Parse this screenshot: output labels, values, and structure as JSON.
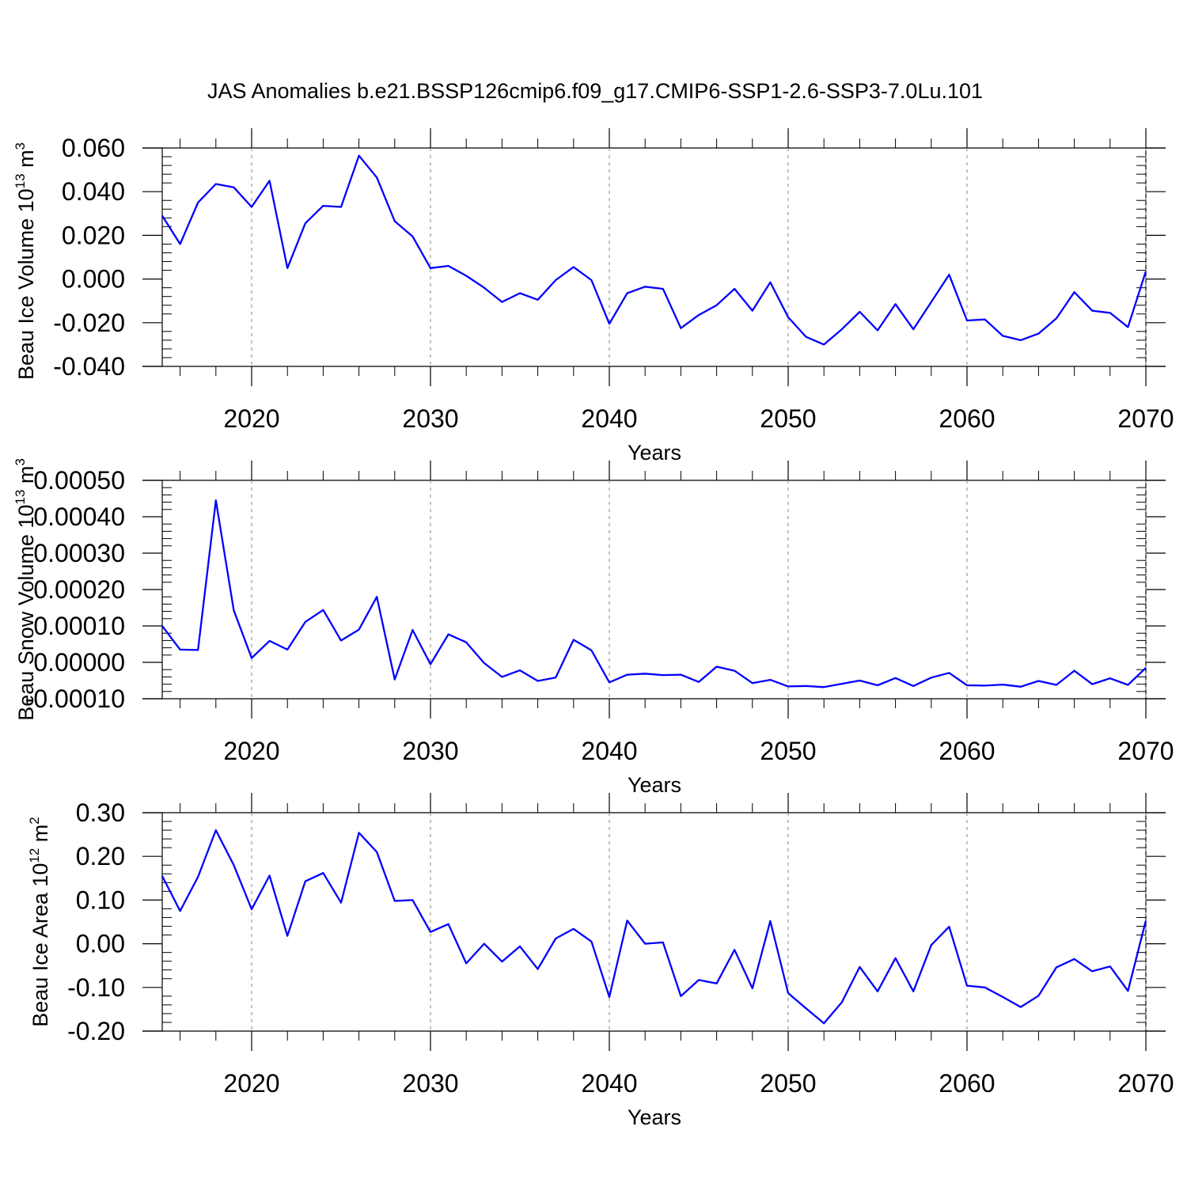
{
  "chart_data": {
    "type": "line",
    "title": "JAS Anomalies b.e21.BSSP126cmip6.f09_g17.CMIP6-SSP1-2.6-SSP3-7.0Lu.101",
    "x_range": [
      2015,
      2070
    ],
    "x_ticks": [
      2020,
      2030,
      2040,
      2050,
      2060,
      2070
    ],
    "xlabel": "Years",
    "grid": "dashed vertical lines at decades",
    "line_color": "#0000ff",
    "panels": [
      {
        "ylabel_main": "Beau Ice Volume 10",
        "ylabel_exp": "13",
        "ylabel_unit": " m",
        "ylabel_unit_exp": "3",
        "ylim": [
          -0.04,
          0.06
        ],
        "y_ticks": [
          0.06,
          0.04,
          0.02,
          0.0,
          -0.02,
          -0.04
        ],
        "y_tick_labels": [
          "0.060",
          "0.040",
          "0.020",
          "0.000",
          "-0.020",
          "-0.040"
        ],
        "x": [
          2015,
          2016,
          2017,
          2018,
          2019,
          2020,
          2021,
          2022,
          2023,
          2024,
          2025,
          2026,
          2027,
          2028,
          2029,
          2030,
          2031,
          2032,
          2033,
          2034,
          2035,
          2036,
          2037,
          2038,
          2039,
          2040,
          2041,
          2042,
          2043,
          2044,
          2045,
          2046,
          2047,
          2048,
          2049,
          2050,
          2051,
          2052,
          2053,
          2054,
          2055,
          2056,
          2057,
          2058,
          2059,
          2060,
          2061,
          2062,
          2063,
          2064,
          2065,
          2066,
          2067,
          2068,
          2069,
          2070
        ],
        "values": [
          0.029,
          0.016,
          0.035,
          0.0435,
          0.042,
          0.033,
          0.045,
          0.005,
          0.0255,
          0.0335,
          0.033,
          0.0565,
          0.0465,
          0.0265,
          0.0195,
          0.005,
          0.006,
          0.0015,
          -0.004,
          -0.0105,
          -0.0065,
          -0.0095,
          -0.0005,
          0.0055,
          -0.0005,
          -0.0205,
          -0.0065,
          -0.0035,
          -0.0045,
          -0.0225,
          -0.0165,
          -0.012,
          -0.0045,
          -0.0145,
          -0.0015,
          -0.0175,
          -0.0265,
          -0.03,
          -0.023,
          -0.015,
          -0.0235,
          -0.0115,
          -0.023,
          -0.0105,
          0.002,
          -0.019,
          -0.0185,
          -0.026,
          -0.028,
          -0.025,
          -0.018,
          -0.006,
          -0.0145,
          -0.0155,
          -0.022,
          0.0035
        ]
      },
      {
        "ylabel_main": "Beau Snow Volume 10",
        "ylabel_exp": "13",
        "ylabel_unit": " m",
        "ylabel_unit_exp": "3",
        "ylim": [
          -0.0001,
          0.0005
        ],
        "y_ticks": [
          0.0005,
          0.0004,
          0.0003,
          0.0002,
          0.0001,
          0.0,
          -0.0001
        ],
        "y_tick_labels": [
          "0.00050",
          "0.00040",
          "0.00030",
          "0.00020",
          "0.00010",
          "0.00000",
          "-0.00010"
        ],
        "x": [
          2015,
          2016,
          2017,
          2018,
          2019,
          2020,
          2021,
          2022,
          2023,
          2024,
          2025,
          2026,
          2027,
          2028,
          2029,
          2030,
          2031,
          2032,
          2033,
          2034,
          2035,
          2036,
          2037,
          2038,
          2039,
          2040,
          2041,
          2042,
          2043,
          2044,
          2045,
          2046,
          2047,
          2048,
          2049,
          2050,
          2051,
          2052,
          2053,
          2054,
          2055,
          2056,
          2057,
          2058,
          2059,
          2060,
          2061,
          2062,
          2063,
          2064,
          2065,
          2066,
          2067,
          2068,
          2069,
          2070
        ],
        "values": [
          0.0001,
          3.5e-05,
          3.4e-05,
          0.000445,
          0.000143,
          1.2e-05,
          5.9e-05,
          3.5e-05,
          0.000111,
          0.000144,
          6e-05,
          9e-05,
          0.00018,
          -4.7e-05,
          8.9e-05,
          -5e-06,
          7.7e-05,
          5.5e-05,
          -2e-06,
          -4e-05,
          -2.2e-05,
          -5.1e-05,
          -4.2e-05,
          6.2e-05,
          3.3e-05,
          -5.5e-05,
          -3.4e-05,
          -3.1e-05,
          -3.5e-05,
          -3.4e-05,
          -5.4e-05,
          -1.2e-05,
          -2.3e-05,
          -5.7e-05,
          -4.8e-05,
          -6.6e-05,
          -6.5e-05,
          -6.8e-05,
          -5.9e-05,
          -5e-05,
          -6.3e-05,
          -4.3e-05,
          -6.5e-05,
          -4.2e-05,
          -2.9e-05,
          -6.3e-05,
          -6.4e-05,
          -6.1e-05,
          -6.7e-05,
          -5.1e-05,
          -6.2e-05,
          -2.3e-05,
          -6e-05,
          -4.4e-05,
          -6.2e-05,
          -1.5e-05
        ]
      },
      {
        "ylabel_main": "Beau Ice Area 10",
        "ylabel_exp": "12",
        "ylabel_unit": " m",
        "ylabel_unit_exp": "2",
        "ylim": [
          -0.2,
          0.3
        ],
        "y_ticks": [
          0.3,
          0.2,
          0.1,
          0.0,
          -0.1,
          -0.2
        ],
        "y_tick_labels": [
          "0.30",
          "0.20",
          "0.10",
          "0.00",
          "-0.10",
          "-0.20"
        ],
        "x": [
          2015,
          2016,
          2017,
          2018,
          2019,
          2020,
          2021,
          2022,
          2023,
          2024,
          2025,
          2026,
          2027,
          2028,
          2029,
          2030,
          2031,
          2032,
          2033,
          2034,
          2035,
          2036,
          2037,
          2038,
          2039,
          2040,
          2041,
          2042,
          2043,
          2044,
          2045,
          2046,
          2047,
          2048,
          2049,
          2050,
          2051,
          2052,
          2053,
          2054,
          2055,
          2056,
          2057,
          2058,
          2059,
          2060,
          2061,
          2062,
          2063,
          2064,
          2065,
          2066,
          2067,
          2068,
          2069,
          2070
        ],
        "values": [
          0.155,
          0.075,
          0.153,
          0.26,
          0.18,
          0.079,
          0.156,
          0.018,
          0.143,
          0.162,
          0.094,
          0.254,
          0.21,
          0.098,
          0.1,
          0.027,
          0.045,
          -0.045,
          0.0,
          -0.041,
          -0.006,
          -0.058,
          0.012,
          0.034,
          0.005,
          -0.122,
          0.053,
          0.0,
          0.003,
          -0.12,
          -0.083,
          -0.091,
          -0.014,
          -0.102,
          0.052,
          -0.113,
          -0.148,
          -0.182,
          -0.134,
          -0.053,
          -0.109,
          -0.033,
          -0.109,
          -0.003,
          0.039,
          -0.096,
          -0.1,
          -0.122,
          -0.145,
          -0.119,
          -0.054,
          -0.035,
          -0.063,
          -0.052,
          -0.108,
          0.053
        ]
      }
    ]
  }
}
